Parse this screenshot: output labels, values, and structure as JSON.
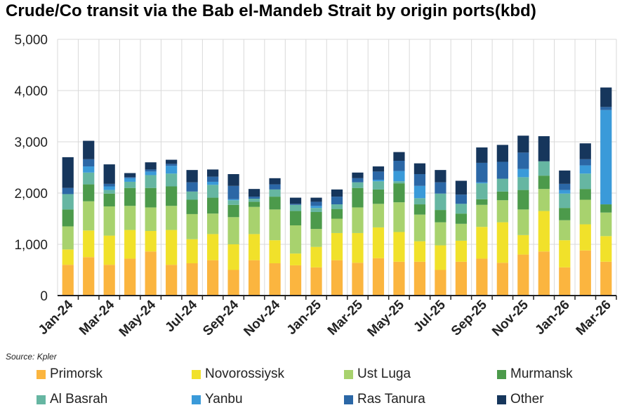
{
  "chart_data": {
    "type": "bar",
    "stacked": true,
    "title": "Crude/Co transit via the Bab el-Mandeb Strait by origin ports(kbd)",
    "source": "Source: Kpler",
    "xlabel": "",
    "ylabel": "",
    "ylim": [
      0,
      5000
    ],
    "yticks": [
      0,
      1000,
      2000,
      3000,
      4000,
      5000
    ],
    "ytick_labels": [
      "0",
      "1,000",
      "2,000",
      "3,000",
      "4,000",
      "5,000"
    ],
    "grid": true,
    "legend_position": "bottom",
    "categories": [
      "Jan-24",
      "Feb-24",
      "Mar-24",
      "Apr-24",
      "May-24",
      "Jun-24",
      "Jul-24",
      "Aug-24",
      "Sep-24",
      "Oct-24",
      "Nov-24",
      "Dec-24",
      "Jan-25",
      "Feb-25",
      "Mar-25",
      "Apr-25",
      "May-25",
      "Jun-25",
      "Jul-25",
      "Aug-25",
      "Sep-25",
      "Oct-25",
      "Nov-25",
      "Dec-25",
      "Jan-26",
      "Feb-26",
      "Mar-26"
    ],
    "x_tick_labels": [
      "Jan-24",
      "",
      "Mar-24",
      "",
      "May-24",
      "",
      "Jul-24",
      "",
      "Sep-24",
      "",
      "Nov-24",
      "",
      "Jan-25",
      "",
      "Mar-25",
      "",
      "May-25",
      "",
      "Jul-25",
      "",
      "Sep-25",
      "",
      "Nov-25",
      "",
      "Jan-26",
      "",
      "Mar-26"
    ],
    "series": [
      {
        "name": "Primorsk",
        "color": "#FBB53F",
        "values": [
          600,
          750,
          600,
          720,
          860,
          600,
          630,
          690,
          500,
          690,
          630,
          590,
          550,
          690,
          640,
          730,
          660,
          660,
          500,
          660,
          720,
          640,
          800,
          860,
          550,
          880,
          660
        ]
      },
      {
        "name": "Novorossiysk",
        "color": "#F1E12A",
        "values": [
          300,
          520,
          570,
          560,
          400,
          680,
          470,
          510,
          500,
          510,
          450,
          230,
          400,
          530,
          580,
          600,
          580,
          400,
          480,
          410,
          620,
          790,
          380,
          790,
          530,
          510,
          500
        ]
      },
      {
        "name": "Ust Luga",
        "color": "#A8D26E",
        "values": [
          450,
          570,
          570,
          470,
          460,
          470,
          490,
          400,
          530,
          530,
          600,
          550,
          350,
          280,
          500,
          460,
          580,
          520,
          450,
          330,
          430,
          430,
          500,
          430,
          390,
          480,
          460
        ]
      },
      {
        "name": "Murmansk",
        "color": "#4C9A4B",
        "values": [
          330,
          330,
          250,
          350,
          380,
          380,
          280,
          310,
          240,
          100,
          250,
          280,
          330,
          190,
          380,
          280,
          370,
          200,
          240,
          200,
          110,
          170,
          380,
          260,
          240,
          210,
          160
        ]
      },
      {
        "name": "Al Basrah",
        "color": "#66B6A2",
        "values": [
          300,
          230,
          70,
          120,
          250,
          250,
          160,
          250,
          90,
          60,
          140,
          120,
          80,
          90,
          110,
          160,
          40,
          120,
          320,
          190,
          310,
          250,
          250,
          280,
          280,
          300,
          0
        ]
      },
      {
        "name": "Yanbu",
        "color": "#3A9AD9",
        "values": [
          0,
          120,
          70,
          70,
          70,
          150,
          0,
          60,
          20,
          0,
          0,
          0,
          40,
          0,
          0,
          30,
          200,
          240,
          0,
          0,
          20,
          0,
          160,
          0,
          70,
          160,
          1840
        ]
      },
      {
        "name": "Ras Tanura",
        "color": "#2B67A6",
        "values": [
          120,
          140,
          50,
          20,
          40,
          40,
          180,
          100,
          260,
          40,
          100,
          20,
          80,
          150,
          80,
          160,
          200,
          230,
          220,
          180,
          380,
          330,
          320,
          0,
          120,
          120,
          60
        ]
      },
      {
        "name": "Other",
        "color": "#16365C",
        "values": [
          600,
          360,
          380,
          80,
          140,
          80,
          240,
          140,
          230,
          150,
          120,
          120,
          80,
          140,
          110,
          100,
          170,
          210,
          240,
          270,
          300,
          330,
          330,
          490,
          260,
          310,
          380
        ]
      }
    ]
  }
}
